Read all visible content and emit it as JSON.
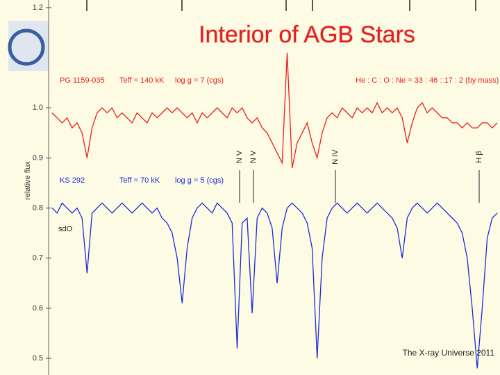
{
  "chart_data": {
    "type": "line",
    "title": "Interior of AGB Stars",
    "footer": "The X-ray Universe 2011",
    "ylabel": "relative flux",
    "categories": [
      null,
      null,
      null,
      null,
      null,
      null,
      null,
      null,
      null,
      null,
      null,
      null,
      null,
      null,
      null,
      null,
      null,
      null,
      null,
      null,
      null,
      null,
      null,
      null,
      null,
      null,
      null,
      null,
      null,
      null,
      null,
      null,
      null,
      null,
      null,
      null,
      null,
      null,
      null,
      null,
      null,
      null,
      null,
      null,
      null,
      null,
      null,
      null,
      null,
      null,
      null,
      null,
      null,
      null,
      null,
      null,
      null,
      null,
      null,
      null,
      null,
      null,
      null,
      null,
      null,
      null,
      null,
      null,
      null,
      null,
      null,
      null,
      null,
      null,
      null,
      null,
      null,
      null,
      null,
      null,
      null,
      null,
      null,
      null,
      null,
      null,
      null,
      null,
      null,
      null
    ],
    "series": [
      {
        "color": "#e8201a",
        "values": [
          0.99,
          0.98,
          0.97,
          0.98,
          0.96,
          0.97,
          0.95,
          0.9,
          0.96,
          0.99,
          1,
          0.99,
          1,
          0.98,
          0.99,
          0.98,
          0.97,
          0.99,
          0.98,
          0.97,
          0.99,
          0.98,
          0.99,
          1,
          0.99,
          1,
          0.99,
          0.98,
          0.99,
          0.97,
          0.99,
          0.98,
          0.99,
          1,
          0.99,
          0.98,
          1,
          0.99,
          1,
          0.98,
          0.97,
          0.98,
          0.96,
          0.95,
          0.93,
          0.91,
          0.89,
          1.11,
          0.88,
          0.93,
          0.95,
          0.97,
          0.93,
          0.9,
          0.95,
          0.98,
          0.99,
          0.98,
          1,
          0.99,
          0.98,
          1,
          0.99,
          1,
          0.99,
          1.01,
          0.99,
          1,
          0.99,
          1,
          0.98,
          0.93,
          0.97,
          1,
          1.01,
          0.99,
          1,
          0.99,
          0.98,
          0.98,
          0.97,
          0.97,
          0.96,
          0.97,
          0.96,
          0.96,
          0.97,
          0.97,
          0.96,
          0.97
        ]
      },
      {
        "color": "#1a2ad8",
        "values": [
          0.8,
          0.79,
          0.81,
          0.8,
          0.79,
          0.8,
          0.78,
          0.67,
          0.79,
          0.8,
          0.81,
          0.8,
          0.79,
          0.8,
          0.81,
          0.8,
          0.79,
          0.8,
          0.81,
          0.8,
          0.79,
          0.8,
          0.78,
          0.77,
          0.75,
          0.7,
          0.61,
          0.72,
          0.78,
          0.8,
          0.81,
          0.8,
          0.79,
          0.81,
          0.8,
          0.79,
          0.77,
          0.52,
          0.77,
          0.78,
          0.59,
          0.78,
          0.8,
          0.79,
          0.76,
          0.65,
          0.76,
          0.8,
          0.81,
          0.8,
          0.79,
          0.77,
          0.72,
          0.5,
          0.7,
          0.78,
          0.8,
          0.81,
          0.8,
          0.79,
          0.8,
          0.81,
          0.8,
          0.79,
          0.8,
          0.81,
          0.8,
          0.79,
          0.78,
          0.76,
          0.7,
          0.78,
          0.8,
          0.81,
          0.8,
          0.79,
          0.8,
          0.81,
          0.8,
          0.79,
          0.78,
          0.77,
          0.75,
          0.7,
          0.6,
          0.48,
          0.6,
          0.74,
          0.78,
          0.79
        ]
      }
    ],
    "annotations": [
      "PG 1159-035",
      "Teff = 140 kK",
      "log g = 7 (cgs)",
      "He : C : O : Ne = 33 : 46 : 17 : 2 (by mass)",
      "KS 292",
      "Teff = 70 kK",
      "log g = 5 (cgs)",
      "sdO"
    ],
    "line_ids": [
      "N V",
      "N V",
      "N IV",
      "H β"
    ],
    "ylim": [
      0.5,
      1.2
    ],
    "yticks": [
      0.5,
      0.6,
      0.7,
      0.8,
      0.9,
      {
        "value": 1,
        "label": "1.0"
      },
      1.2
    ],
    "grid": false
  }
}
